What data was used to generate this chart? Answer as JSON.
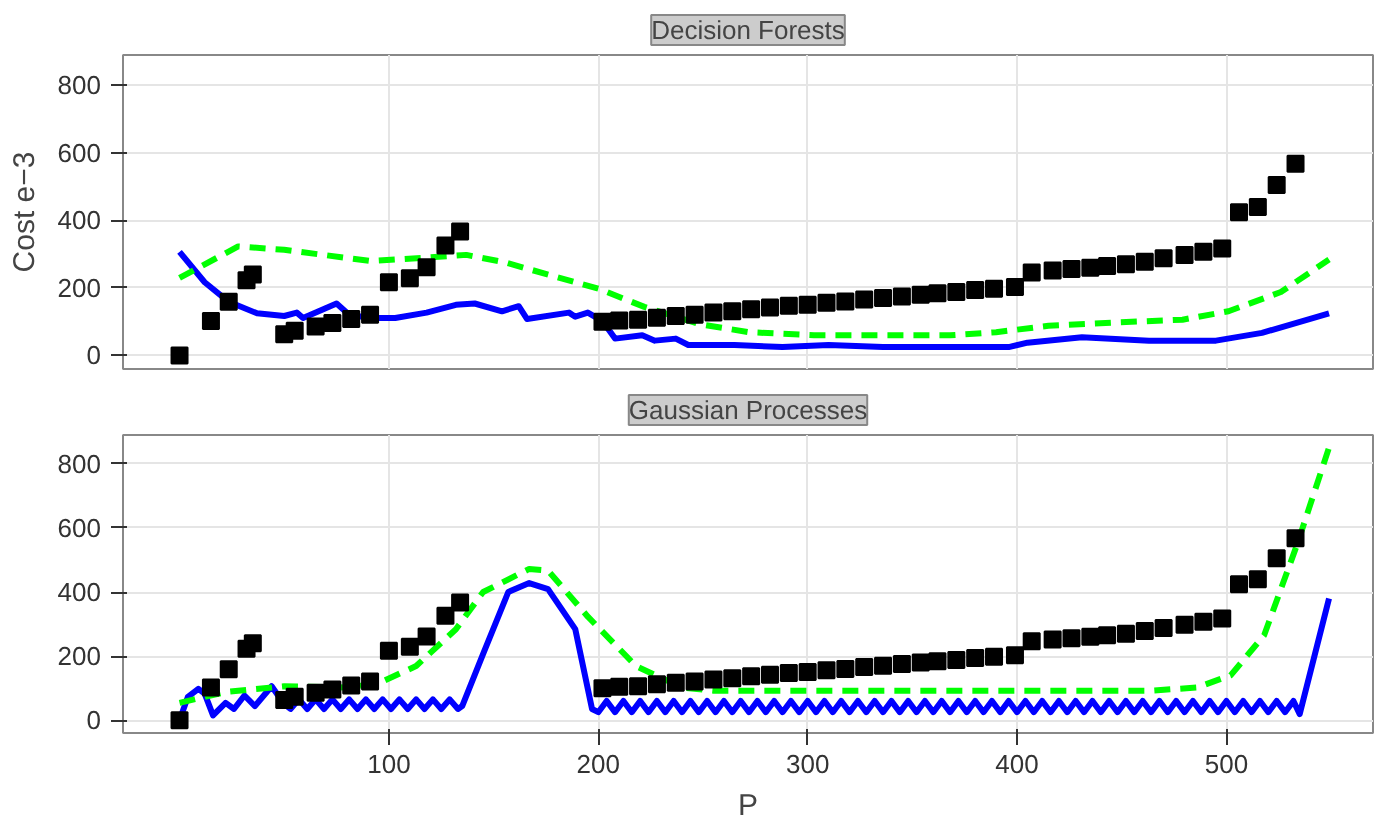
{
  "chart_data": [
    {
      "type": "line",
      "title": "Decision Forests",
      "ylabel": "Cost e−3",
      "xlim": [
        -27,
        570
      ],
      "ylim": [
        -40,
        890
      ],
      "xticks": [
        100,
        200,
        300,
        400,
        500
      ],
      "yticks": [
        0,
        200,
        400,
        600,
        800
      ],
      "grid": true,
      "tick_labels": "y",
      "series": [
        {
          "type": "scatter",
          "marker": "square",
          "color": "#000000",
          "x": [
            0,
            15,
            23.5,
            32,
            35,
            50,
            55,
            65,
            73,
            82,
            91,
            100,
            110,
            118,
            127,
            134,
            202,
            210,
            219,
            228,
            237,
            246,
            255,
            264,
            273,
            282,
            291,
            300,
            309,
            318,
            327,
            336,
            345,
            354,
            362,
            371,
            380,
            389,
            399,
            407,
            417,
            426,
            435,
            443,
            452,
            461,
            470,
            480,
            489,
            498,
            506,
            515,
            524,
            533
          ],
          "values": [
            0,
            102,
            159,
            223,
            240,
            63,
            73,
            86,
            96,
            108,
            121,
            217,
            229,
            261,
            326,
            367,
            100,
            104,
            106,
            112,
            117,
            121,
            127,
            131,
            137,
            142,
            147,
            150,
            156,
            160,
            166,
            170,
            175,
            180,
            184,
            188,
            194,
            198,
            203,
            246,
            252,
            256,
            260,
            265,
            270,
            278,
            288,
            298,
            307,
            317,
            424,
            440,
            505,
            568
          ]
        },
        {
          "line_style": "solid",
          "color": "#0000ff",
          "x": [
            0,
            12,
            23.5,
            37,
            50,
            56,
            59,
            75,
            81,
            91,
            103,
            118,
            132,
            141,
            154,
            162,
            166,
            186,
            189,
            195,
            202,
            208,
            221,
            227,
            237,
            243,
            265,
            288,
            310,
            336,
            368,
            396,
            405,
            431,
            463,
            495,
            517,
            549
          ],
          "values": [
            307,
            217,
            159,
            125,
            117,
            127,
            111,
            154,
            121,
            111,
            111,
            127,
            150,
            154,
            131,
            146,
            108,
            127,
            115,
            127,
            102,
            50,
            60,
            44,
            50,
            31,
            31,
            25,
            31,
            25,
            25,
            25,
            38,
            54,
            44,
            44,
            67,
            125
          ]
        },
        {
          "line_style": "dashed",
          "color": "#00ff00",
          "x": [
            0,
            28,
            50,
            91,
            118,
            137,
            156,
            178,
            200,
            222,
            249,
            272,
            303,
            336,
            368,
            390,
            415,
            447,
            479,
            501,
            526,
            549
          ],
          "values": [
            230,
            323,
            313,
            280,
            290,
            298,
            275,
            236,
            198,
            144,
            92,
            69,
            60,
            60,
            60,
            69,
            88,
            98,
            106,
            131,
            188,
            284
          ]
        }
      ]
    },
    {
      "type": "line",
      "title": "Gaussian Processes",
      "xlabel": "P",
      "xlim": [
        -27,
        570
      ],
      "ylim": [
        -40,
        890
      ],
      "xticks": [
        100,
        200,
        300,
        400,
        500
      ],
      "yticks": [
        0,
        200,
        400,
        600,
        800
      ],
      "grid": true,
      "series": [
        {
          "type": "scatter",
          "marker": "square",
          "color": "#000000",
          "x": [
            0,
            15,
            23.5,
            32,
            35,
            50,
            55,
            65,
            73,
            82,
            91,
            100,
            110,
            118,
            127,
            134,
            202,
            210,
            219,
            228,
            237,
            246,
            255,
            264,
            273,
            282,
            291,
            300,
            309,
            318,
            327,
            336,
            345,
            354,
            362,
            371,
            380,
            389,
            399,
            407,
            417,
            426,
            435,
            443,
            452,
            461,
            470,
            480,
            489,
            498,
            506,
            515,
            524,
            533
          ],
          "values": [
            0,
            102,
            159,
            223,
            240,
            63,
            73,
            86,
            96,
            108,
            121,
            217,
            229,
            261,
            326,
            367,
            100,
            104,
            106,
            112,
            117,
            121,
            127,
            131,
            137,
            142,
            147,
            150,
            156,
            160,
            166,
            170,
            175,
            180,
            184,
            188,
            194,
            198,
            203,
            246,
            252,
            256,
            260,
            265,
            270,
            278,
            288,
            298,
            307,
            317,
            424,
            440,
            505,
            568
          ]
        },
        {
          "line_style": "solid",
          "color": "#0000ff",
          "x": [
            0,
            4,
            9,
            12,
            16,
            22,
            26,
            31,
            36,
            44,
            50,
            53,
            57,
            61,
            65,
            69,
            73,
            77,
            81,
            85,
            89,
            93,
            97,
            101,
            105,
            109,
            113,
            117,
            121,
            125,
            129,
            133,
            135,
            145,
            157,
            167,
            176,
            189,
            197,
            200,
            204,
            208,
            212,
            216,
            220,
            224,
            228,
            232,
            236,
            240,
            244,
            248,
            252,
            256,
            260,
            264,
            268,
            272,
            276,
            280,
            284,
            288,
            292,
            296,
            300,
            304,
            308,
            312,
            316,
            320,
            324,
            328,
            332,
            336,
            340,
            344,
            348,
            352,
            356,
            360,
            364,
            368,
            372,
            376,
            380,
            384,
            388,
            392,
            396,
            400,
            404,
            408,
            412,
            416,
            420,
            424,
            428,
            432,
            436,
            440,
            444,
            448,
            452,
            456,
            460,
            464,
            468,
            472,
            476,
            480,
            484,
            488,
            492,
            496,
            500,
            504,
            508,
            512,
            516,
            520,
            524,
            528,
            532,
            535,
            549
          ],
          "values": [
            0,
            73,
            98,
            83,
            15,
            54,
            35,
            77,
            44,
            106,
            50,
            35,
            65,
            35,
            65,
            35,
            65,
            35,
            65,
            35,
            65,
            35,
            65,
            35,
            65,
            35,
            65,
            35,
            65,
            35,
            65,
            35,
            44,
            207,
            400,
            428,
            409,
            284,
            35,
            25,
            60,
            25,
            60,
            25,
            60,
            25,
            60,
            25,
            60,
            25,
            60,
            25,
            60,
            25,
            60,
            25,
            60,
            25,
            60,
            25,
            60,
            25,
            60,
            25,
            60,
            25,
            60,
            25,
            60,
            25,
            60,
            25,
            60,
            25,
            60,
            25,
            60,
            25,
            60,
            25,
            60,
            25,
            60,
            25,
            60,
            25,
            60,
            25,
            60,
            25,
            60,
            25,
            60,
            25,
            60,
            25,
            60,
            25,
            60,
            25,
            60,
            25,
            60,
            25,
            60,
            25,
            60,
            25,
            60,
            25,
            60,
            25,
            60,
            25,
            60,
            25,
            60,
            25,
            60,
            25,
            60,
            25,
            60,
            19,
            380
          ]
        },
        {
          "line_style": "dashed",
          "color": "#00ff00",
          "x": [
            0,
            22,
            50,
            82,
            97,
            113,
            132,
            145,
            167,
            176,
            195,
            218,
            240,
            255,
            300,
            350,
            400,
            464,
            486,
            502,
            518,
            534,
            549
          ],
          "values": [
            54,
            88,
            106,
            102,
            121,
            169,
            284,
            400,
            472,
            467,
            323,
            169,
            102,
            92,
            92,
            92,
            92,
            92,
            102,
            140,
            265,
            553,
            851
          ]
        }
      ]
    }
  ]
}
